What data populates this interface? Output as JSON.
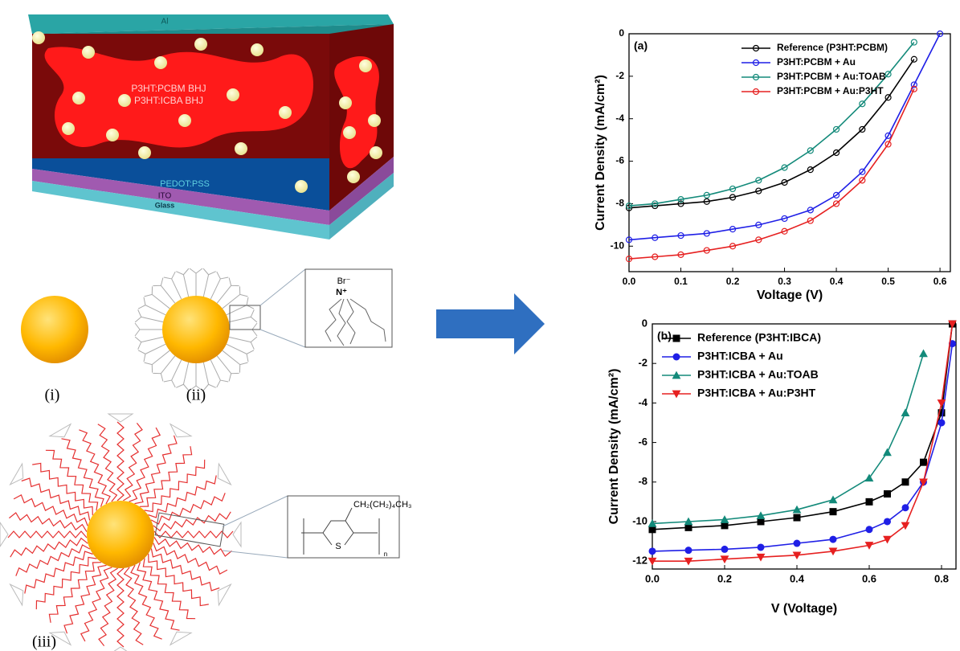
{
  "diagram": {
    "top_layer": "Al",
    "active_layer_1": "P3HT:PCBM BHJ",
    "active_layer_2": "P3HT:ICBA BHJ",
    "hole_layer": "PEDOT:PSS",
    "electrode": "ITO",
    "substrate": "Glass",
    "label_i": "(i)",
    "label_ii": "(ii)",
    "label_iii": "(iii)",
    "anion": "Br⁻",
    "cation": "N⁺",
    "side_chain": "CH₂(CH₂)₄CH₃",
    "sulfur": "S",
    "repeat": "n"
  },
  "chart_data": [
    {
      "type": "line",
      "annotation": "(a)",
      "x_label": "Voltage (V)",
      "y_label": "Current Density (mA/cm²)",
      "x": [
        0,
        0.05,
        0.1,
        0.15,
        0.2,
        0.25,
        0.3,
        0.35,
        0.4,
        0.45,
        0.5,
        0.55,
        0.6
      ],
      "xlim": [
        0,
        0.62
      ],
      "ylim": [
        -11.2,
        0
      ],
      "xticks": [
        {
          "value": 0,
          "label": "0.0"
        },
        0.1,
        0.2,
        0.3,
        0.4,
        0.5,
        0.6
      ],
      "yticks": [
        0,
        -2,
        -4,
        -6,
        -8,
        -10
      ],
      "legend": "upper right",
      "series": [
        {
          "name": "Reference (P3HT:PCBM)",
          "color": "#000000",
          "marker": "open-circle",
          "values": [
            -8.2,
            -8.1,
            -8.0,
            -7.9,
            -7.7,
            -7.4,
            -7.0,
            -6.4,
            -5.6,
            -4.5,
            -3.0,
            -1.2,
            null
          ]
        },
        {
          "name": "P3HT:PCBM + Au",
          "color": "#1f1fe6",
          "marker": "open-circle",
          "values": [
            -9.7,
            -9.6,
            -9.5,
            -9.4,
            -9.2,
            -9.0,
            -8.7,
            -8.3,
            -7.6,
            -6.5,
            -4.8,
            -2.4,
            0
          ]
        },
        {
          "name": "P3HT:PCBM + Au:TOAB",
          "color": "#138a7a",
          "marker": "open-circle",
          "values": [
            -8.1,
            -8.0,
            -7.8,
            -7.6,
            -7.3,
            -6.9,
            -6.3,
            -5.5,
            -4.5,
            -3.3,
            -1.9,
            -0.4,
            null
          ]
        },
        {
          "name": "P3HT:PCBM + Au:P3HT",
          "color": "#e62020",
          "marker": "open-circle",
          "values": [
            -10.6,
            -10.5,
            -10.4,
            -10.2,
            -10.0,
            -9.7,
            -9.3,
            -8.8,
            -8.0,
            -6.9,
            -5.2,
            -2.6,
            null
          ]
        }
      ]
    },
    {
      "type": "line",
      "annotation": "(b)",
      "x_label": "V (Voltage)",
      "y_label": "Current Density (mA/cm²)",
      "x": [
        0,
        0.1,
        0.2,
        0.3,
        0.4,
        0.5,
        0.6,
        0.65,
        0.7,
        0.75,
        0.8,
        0.83
      ],
      "xlim": [
        0,
        0.84
      ],
      "ylim": [
        -12.4,
        0
      ],
      "xticks": [
        {
          "value": 0,
          "label": "0.0"
        },
        0.2,
        0.4,
        0.6,
        0.8
      ],
      "yticks": [
        0,
        -2,
        -4,
        -6,
        -8,
        -10,
        -12
      ],
      "legend": "upper left",
      "series": [
        {
          "name": "Reference (P3HT:IBCA)",
          "color": "#000000",
          "marker": "square",
          "values": [
            -10.4,
            -10.3,
            -10.2,
            -10.0,
            -9.8,
            -9.5,
            -9.0,
            -8.6,
            -8.0,
            -7.0,
            -4.5,
            0
          ]
        },
        {
          "name": "P3HT:ICBA + Au",
          "color": "#1f1fe6",
          "marker": "circle",
          "values": [
            -11.5,
            -11.45,
            -11.4,
            -11.3,
            -11.1,
            -10.9,
            -10.4,
            -10.0,
            -9.3,
            -8.0,
            -5.0,
            -1.0
          ]
        },
        {
          "name": "P3HT:ICBA + Au:TOAB",
          "color": "#138a7a",
          "marker": "triangle-up",
          "values": [
            -10.1,
            -10.0,
            -9.9,
            -9.7,
            -9.4,
            -8.9,
            -7.8,
            -6.5,
            -4.5,
            -1.5,
            null,
            null
          ]
        },
        {
          "name": "P3HT:ICBA + Au:P3HT",
          "color": "#e62020",
          "marker": "triangle-down",
          "values": [
            -12.0,
            -12.0,
            -11.9,
            -11.8,
            -11.7,
            -11.5,
            -11.2,
            -10.9,
            -10.2,
            -8.0,
            -4.0,
            0
          ]
        }
      ]
    }
  ]
}
